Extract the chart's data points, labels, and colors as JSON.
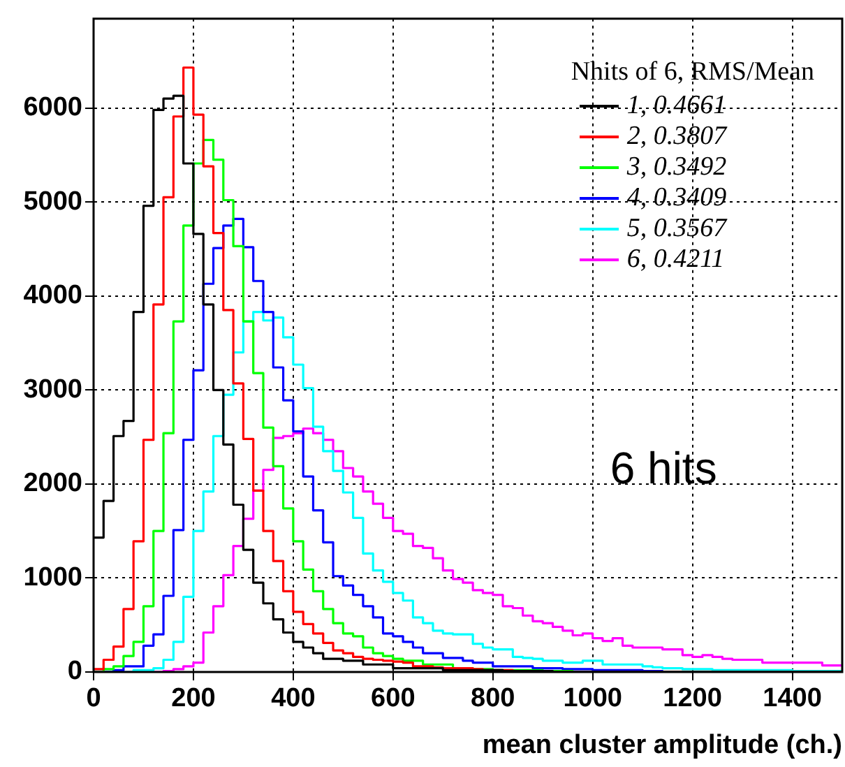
{
  "chart_data": {
    "type": "histogram",
    "xlabel": "mean cluster amplitude (ch.)",
    "legend_title": "Nhits of 6, RMS/Mean",
    "annotations": [
      "6 hits"
    ],
    "bins": [
      0,
      20,
      40,
      60,
      80,
      100,
      120,
      140,
      160,
      180,
      200,
      220,
      240,
      260,
      280,
      300,
      320,
      340,
      360,
      380,
      400,
      420,
      440,
      460,
      480,
      500,
      520,
      540,
      560,
      580,
      600,
      620,
      640,
      660,
      680,
      700,
      720,
      740,
      760,
      780,
      800,
      820,
      840,
      860,
      880,
      900,
      920,
      940,
      960,
      980,
      1000,
      1020,
      1040,
      1060,
      1080,
      1100,
      1120,
      1140,
      1160,
      1180,
      1200,
      1220,
      1240,
      1260,
      1280,
      1300,
      1320,
      1340,
      1360,
      1380,
      1400,
      1420,
      1440,
      1460,
      1480,
      1500
    ],
    "series": [
      {
        "name": "1, 0.4661",
        "color": "#000000",
        "values": [
          1430,
          1820,
          2510,
          2670,
          3830,
          4960,
          5980,
          6100,
          6130,
          5410,
          4660,
          3910,
          3000,
          2420,
          1780,
          1300,
          950,
          730,
          560,
          420,
          320,
          260,
          200,
          140,
          140,
          120,
          120,
          80,
          80,
          80,
          40,
          40,
          40,
          40,
          40,
          20,
          20,
          20,
          20,
          20,
          20,
          10,
          10,
          10,
          10,
          10,
          0,
          0,
          0,
          0,
          0,
          0,
          0,
          0,
          0,
          0,
          0,
          0,
          0,
          0,
          0,
          0,
          0,
          0,
          0,
          0,
          0,
          0,
          0,
          0,
          0,
          0,
          0,
          0,
          0
        ]
      },
      {
        "name": "2, 0.3807",
        "color": "#ff0000",
        "values": [
          30,
          130,
          270,
          670,
          1390,
          2470,
          3910,
          5050,
          5910,
          6430,
          5930,
          5380,
          4670,
          3850,
          3070,
          2480,
          1930,
          1500,
          1180,
          860,
          640,
          510,
          410,
          310,
          230,
          200,
          160,
          140,
          130,
          120,
          110,
          100,
          60,
          60,
          50,
          40,
          40,
          40,
          30,
          20,
          20,
          20,
          10,
          10,
          10,
          0,
          0,
          0,
          0,
          0,
          0,
          0,
          0,
          0,
          0,
          0,
          0,
          0,
          0,
          0,
          0,
          0,
          0,
          0,
          0,
          0,
          0,
          0,
          0,
          0,
          0,
          0,
          0,
          0,
          0
        ]
      },
      {
        "name": "3, 0.3492",
        "color": "#00ff00",
        "values": [
          0,
          30,
          60,
          170,
          320,
          700,
          1500,
          2540,
          3730,
          4750,
          5410,
          5660,
          5450,
          5020,
          4530,
          3730,
          3180,
          2600,
          2190,
          1740,
          1390,
          1090,
          860,
          670,
          520,
          410,
          380,
          260,
          200,
          170,
          140,
          120,
          120,
          80,
          80,
          80,
          40,
          40,
          30,
          30,
          20,
          20,
          20,
          20,
          20,
          10,
          10,
          10,
          0,
          0,
          0,
          0,
          0,
          0,
          0,
          0,
          0,
          0,
          0,
          0,
          0,
          0,
          0,
          0,
          0,
          0,
          0,
          0,
          0,
          0,
          0,
          0,
          0,
          0,
          0
        ]
      },
      {
        "name": "4, 0.3409",
        "color": "#0000ff",
        "values": [
          0,
          0,
          20,
          60,
          60,
          280,
          400,
          810,
          1510,
          2470,
          3210,
          4130,
          4510,
          4750,
          4820,
          4520,
          4160,
          3830,
          3240,
          2890,
          2560,
          2080,
          1720,
          1380,
          1020,
          920,
          820,
          700,
          580,
          410,
          380,
          320,
          260,
          200,
          200,
          150,
          150,
          120,
          100,
          100,
          60,
          60,
          60,
          60,
          40,
          40,
          40,
          30,
          30,
          30,
          20,
          20,
          20,
          20,
          20,
          10,
          10,
          0,
          0,
          0,
          0,
          0,
          0,
          0,
          0,
          0,
          0,
          0,
          0,
          0,
          0,
          0,
          0,
          0,
          0
        ]
      },
      {
        "name": "5, 0.3567",
        "color": "#00ffff",
        "values": [
          0,
          0,
          0,
          0,
          20,
          20,
          40,
          130,
          320,
          800,
          1500,
          1920,
          2510,
          2950,
          3400,
          3730,
          3830,
          3740,
          3770,
          3560,
          3270,
          3020,
          2610,
          2350,
          2140,
          1910,
          1640,
          1260,
          1080,
          960,
          840,
          760,
          580,
          520,
          440,
          410,
          400,
          400,
          300,
          260,
          240,
          240,
          160,
          150,
          140,
          120,
          120,
          100,
          100,
          120,
          120,
          80,
          80,
          80,
          80,
          60,
          50,
          40,
          40,
          30,
          30,
          30,
          20,
          20,
          20,
          20,
          20,
          20,
          20,
          20,
          10,
          10,
          10,
          10,
          10
        ]
      },
      {
        "name": "6, 0.4211",
        "color": "#ff00ff",
        "values": [
          0,
          0,
          0,
          0,
          0,
          0,
          0,
          10,
          30,
          60,
          100,
          420,
          700,
          1030,
          1340,
          1630,
          1930,
          2150,
          2490,
          2510,
          2540,
          2590,
          2540,
          2470,
          2350,
          2170,
          2080,
          1920,
          1790,
          1640,
          1500,
          1470,
          1340,
          1320,
          1210,
          1080,
          990,
          950,
          870,
          840,
          820,
          700,
          680,
          600,
          540,
          520,
          480,
          440,
          390,
          410,
          360,
          330,
          360,
          280,
          260,
          260,
          260,
          240,
          240,
          180,
          160,
          180,
          160,
          140,
          130,
          130,
          130,
          100,
          100,
          100,
          100,
          100,
          100,
          70,
          70
        ]
      }
    ],
    "xlim": [
      0,
      1500
    ],
    "xticks": [
      0,
      200,
      400,
      600,
      800,
      1000,
      1200,
      1400
    ],
    "ylim": [
      0,
      6950
    ],
    "yticks": [
      0,
      1000,
      2000,
      3000,
      4000,
      5000,
      6000
    ],
    "grid": true,
    "legend": "top right",
    "line_style": "solid"
  }
}
